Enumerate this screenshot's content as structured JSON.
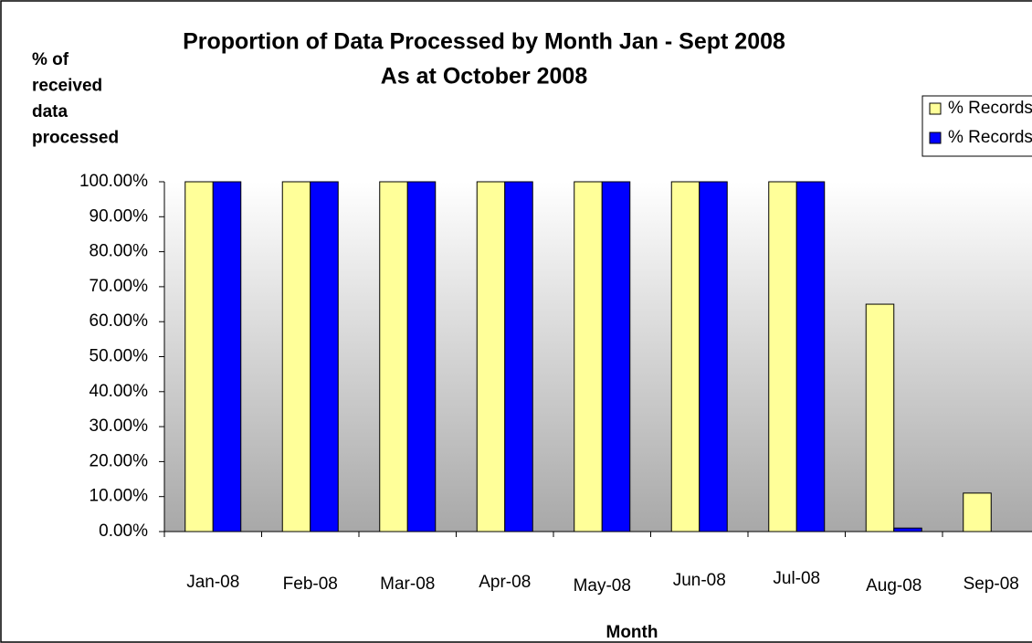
{
  "chart_data": {
    "type": "bar",
    "title": "Proportion of Data Processed by Month Jan - Sept 2008",
    "subtitle": "As at October 2008",
    "y_label": [
      "% of",
      "received",
      "data",
      "processed"
    ],
    "x_label": "Month",
    "categories": [
      "Jan-08",
      "Feb-08",
      "Mar-08",
      "Apr-08",
      "May-08",
      "Jun-08",
      "Jul-08",
      "Aug-08",
      "Sep-08"
    ],
    "series": [
      {
        "name": "% Records Coded",
        "color": "#ffff99",
        "values": [
          100,
          100,
          100,
          100,
          100,
          100,
          100,
          65,
          11
        ]
      },
      {
        "name": "% Records Entered",
        "color": "#0000ff",
        "values": [
          100,
          100,
          100,
          100,
          100,
          100,
          100,
          1,
          0
        ]
      }
    ],
    "ylim": [
      0,
      100
    ],
    "yticks": [
      {
        "value": 0,
        "label": "0.00%"
      },
      {
        "value": 10,
        "label": "10.00%"
      },
      {
        "value": 20,
        "label": "20.00%"
      },
      {
        "value": 30,
        "label": "30.00%"
      },
      {
        "value": 40,
        "label": "40.00%"
      },
      {
        "value": 50,
        "label": "50.00%"
      },
      {
        "value": 60,
        "label": "60.00%"
      },
      {
        "value": 70,
        "label": "70.00%"
      },
      {
        "value": 80,
        "label": "80.00%"
      },
      {
        "value": 90,
        "label": "90.00%"
      },
      {
        "value": 100,
        "label": "100.00%"
      }
    ],
    "legend": "top-right",
    "grid": false
  }
}
